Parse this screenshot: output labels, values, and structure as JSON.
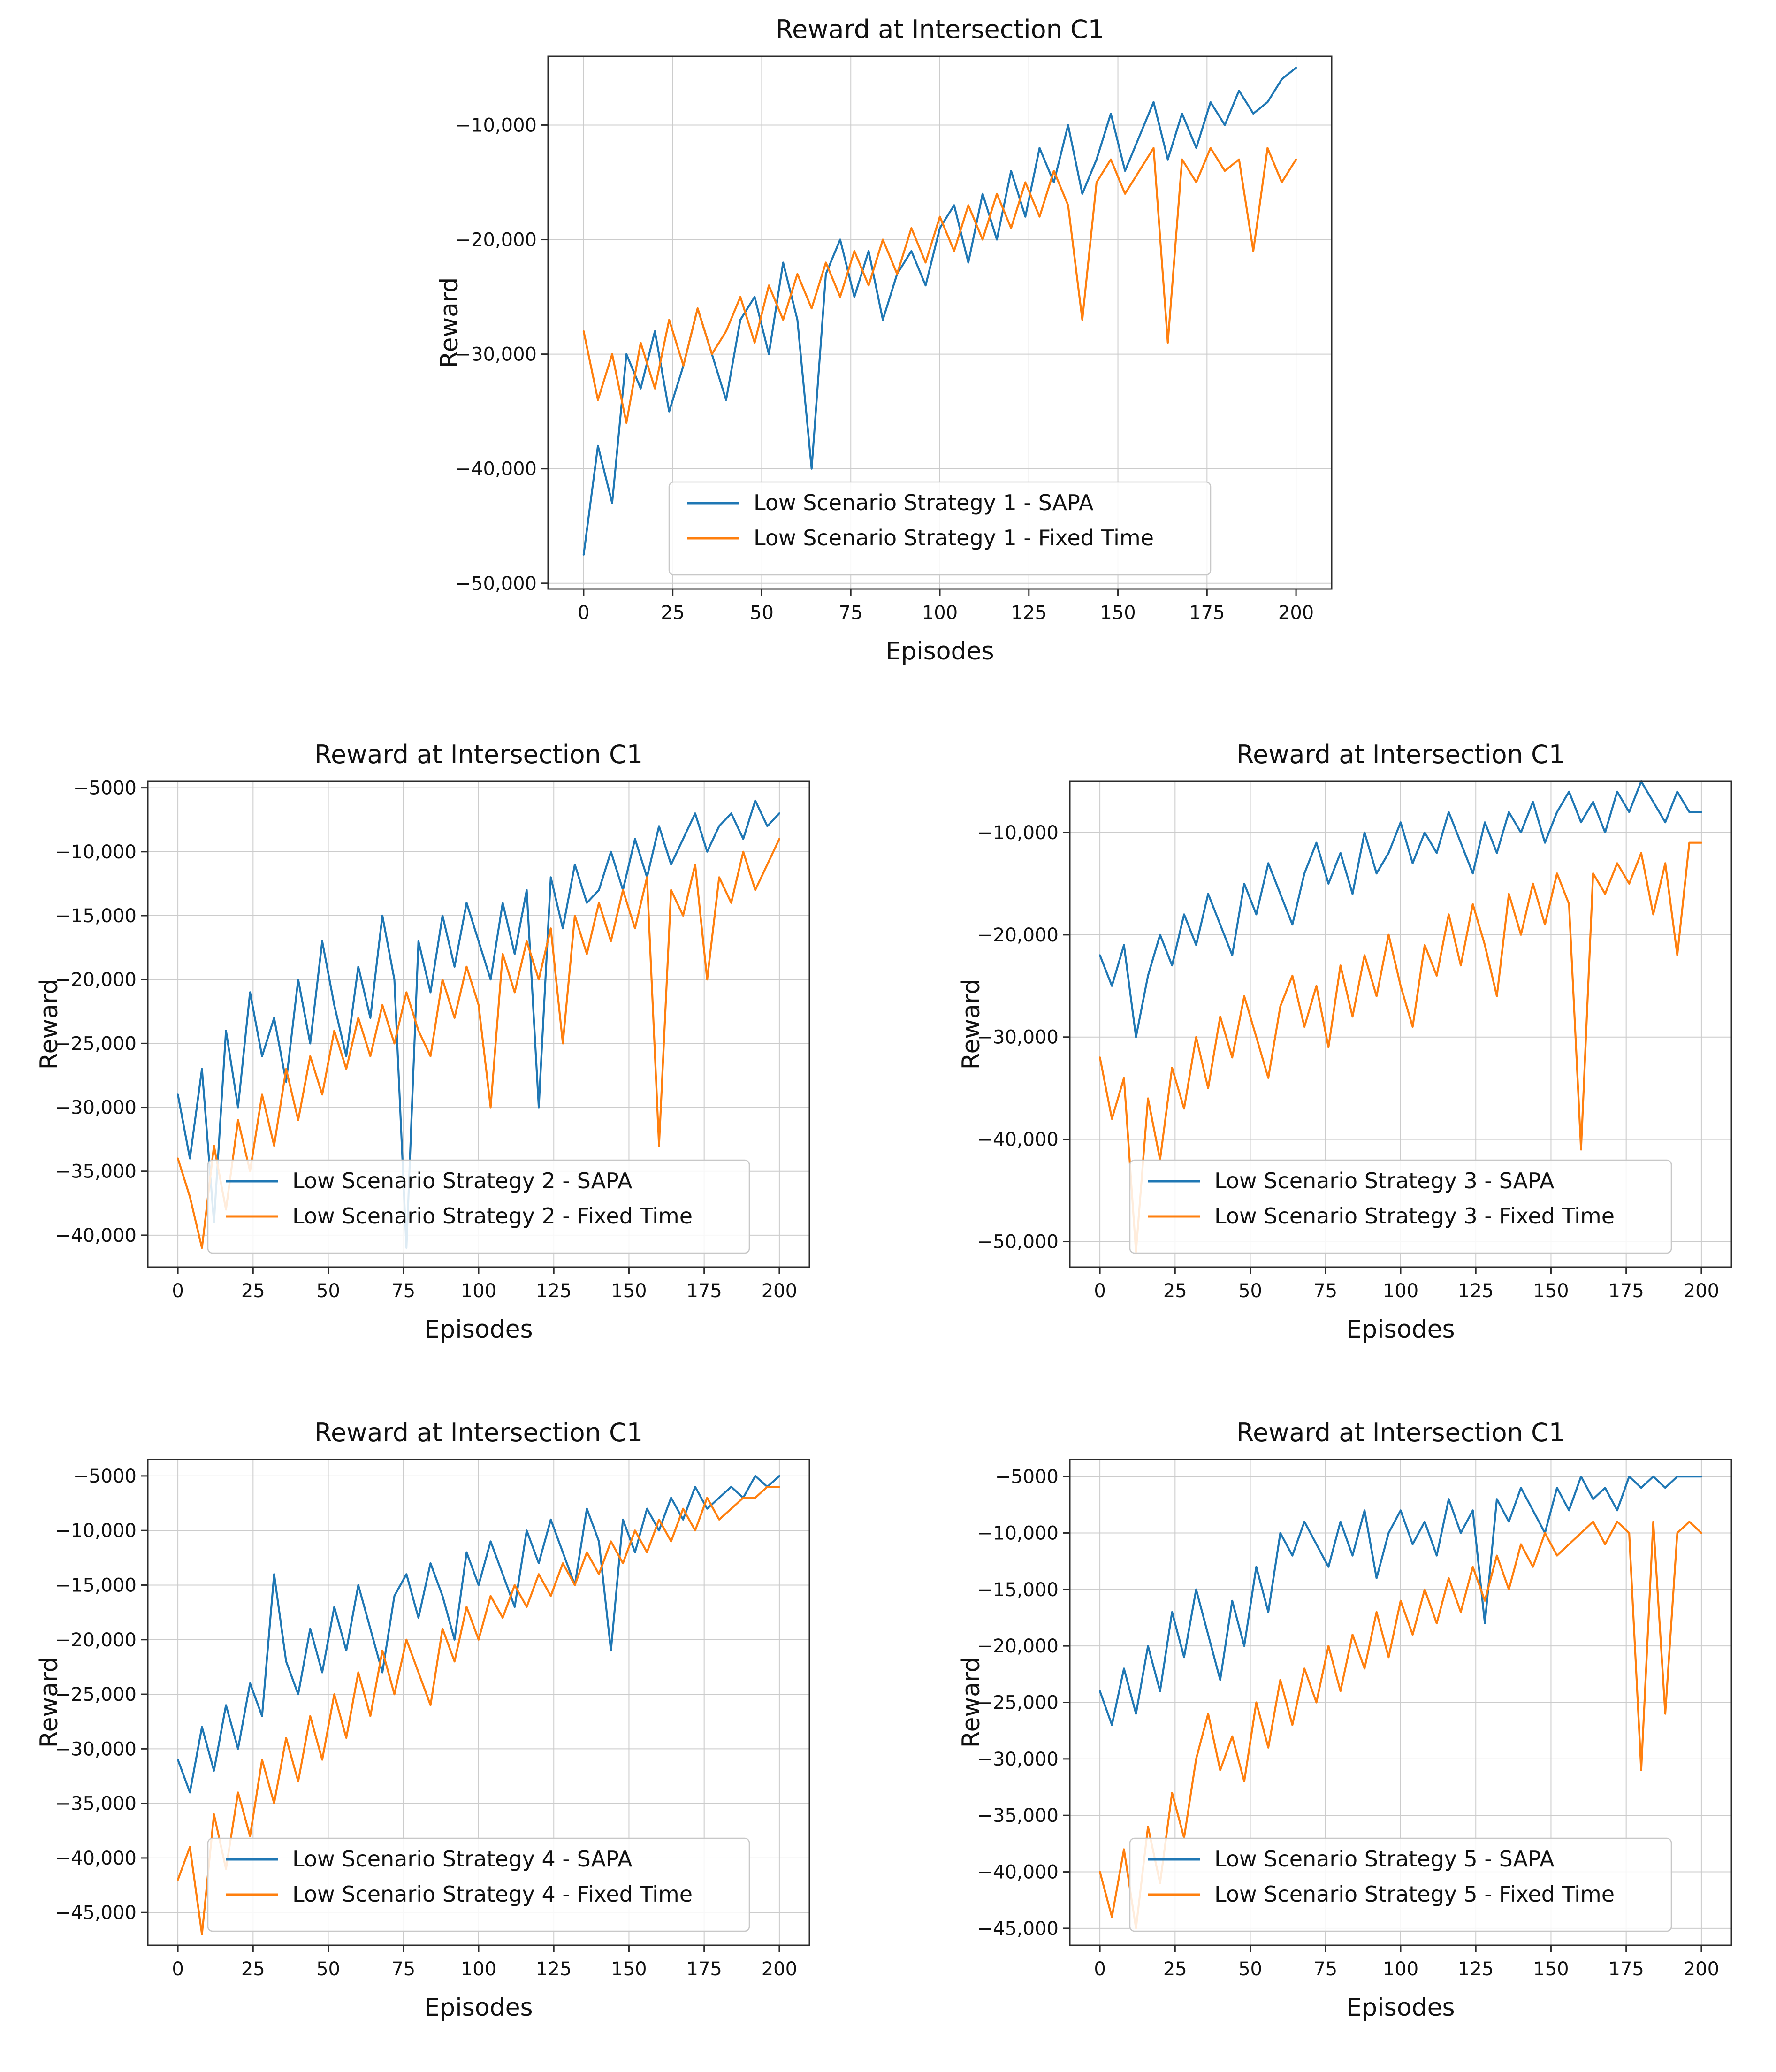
{
  "page": {
    "background": "#ffffff"
  },
  "colors": {
    "sapa": "#1f77b4",
    "fixed_time": "#ff7f0e",
    "grid": "#cccccc",
    "spine": "#2b2b2b",
    "text": "#111111",
    "legend_border": "#c8c8c8"
  },
  "xticks": {
    "values": [
      0,
      25,
      50,
      75,
      100,
      125,
      150,
      175,
      200
    ],
    "labels": [
      "0",
      "25",
      "50",
      "75",
      "100",
      "125",
      "150",
      "175",
      "200"
    ]
  },
  "episodes_x": [
    0,
    4,
    8,
    12,
    16,
    20,
    24,
    28,
    32,
    36,
    40,
    44,
    48,
    52,
    56,
    60,
    64,
    68,
    72,
    76,
    80,
    84,
    88,
    92,
    96,
    100,
    104,
    108,
    112,
    116,
    120,
    124,
    128,
    132,
    136,
    140,
    144,
    148,
    152,
    156,
    160,
    164,
    168,
    172,
    176,
    180,
    184,
    188,
    192,
    196,
    200
  ],
  "chart_data": [
    {
      "type": "line",
      "name": "chart-strategy-1",
      "title": "Reward at Intersection C1",
      "xlabel": "Episodes",
      "ylabel": "Reward",
      "xlim": [
        -10,
        210
      ],
      "ylim": [
        -50500,
        -4000
      ],
      "grid": true,
      "legend_position": "lower center",
      "yticks": {
        "values": [
          -10000,
          -20000,
          -30000,
          -40000,
          -50000
        ],
        "labels": [
          "−10,000",
          "−20,000",
          "−30,000",
          "−40,000",
          "−50,000"
        ]
      },
      "series": [
        {
          "name": "Low Scenario Strategy 1 - SAPA",
          "color_key": "sapa",
          "values": [
            -47500,
            -38000,
            -43000,
            -30000,
            -33000,
            -28000,
            -35000,
            -31000,
            -26000,
            -30000,
            -34000,
            -27000,
            -25000,
            -30000,
            -22000,
            -27000,
            -40000,
            -23000,
            -20000,
            -25000,
            -21000,
            -27000,
            -23000,
            -21000,
            -24000,
            -19000,
            -17000,
            -22000,
            -16000,
            -20000,
            -14000,
            -18000,
            -12000,
            -15000,
            -10000,
            -16000,
            -13000,
            -9000,
            -14000,
            -11000,
            -8000,
            -13000,
            -9000,
            -12000,
            -8000,
            -10000,
            -7000,
            -9000,
            -8000,
            -6000,
            -5000
          ]
        },
        {
          "name": "Low Scenario Strategy 1 - Fixed Time",
          "color_key": "fixed_time",
          "values": [
            -28000,
            -34000,
            -30000,
            -36000,
            -29000,
            -33000,
            -27000,
            -31000,
            -26000,
            -30000,
            -28000,
            -25000,
            -29000,
            -24000,
            -27000,
            -23000,
            -26000,
            -22000,
            -25000,
            -21000,
            -24000,
            -20000,
            -23000,
            -19000,
            -22000,
            -18000,
            -21000,
            -17000,
            -20000,
            -16000,
            -19000,
            -15000,
            -18000,
            -14000,
            -17000,
            -27000,
            -15000,
            -13000,
            -16000,
            -14000,
            -12000,
            -29000,
            -13000,
            -15000,
            -12000,
            -14000,
            -13000,
            -21000,
            -12000,
            -15000,
            -13000
          ]
        }
      ]
    },
    {
      "type": "line",
      "name": "chart-strategy-2",
      "title": "Reward at Intersection C1",
      "xlabel": "Episodes",
      "ylabel": "Reward",
      "xlim": [
        -10,
        210
      ],
      "ylim": [
        -42500,
        -4500
      ],
      "grid": true,
      "legend_position": "lower center",
      "yticks": {
        "values": [
          -5000,
          -10000,
          -15000,
          -20000,
          -25000,
          -30000,
          -35000,
          -40000
        ],
        "labels": [
          "−5000",
          "−10,000",
          "−15,000",
          "−20,000",
          "−25,000",
          "−30,000",
          "−35,000",
          "−40,000"
        ]
      },
      "series": [
        {
          "name": "Low Scenario Strategy 2 - SAPA",
          "color_key": "sapa",
          "values": [
            -29000,
            -34000,
            -27000,
            -39000,
            -24000,
            -30000,
            -21000,
            -26000,
            -23000,
            -28000,
            -20000,
            -25000,
            -17000,
            -22000,
            -26000,
            -19000,
            -23000,
            -15000,
            -20000,
            -41000,
            -17000,
            -21000,
            -15000,
            -19000,
            -14000,
            -17000,
            -20000,
            -14000,
            -18000,
            -13000,
            -30000,
            -12000,
            -16000,
            -11000,
            -14000,
            -13000,
            -10000,
            -13000,
            -9000,
            -12000,
            -8000,
            -11000,
            -9000,
            -7000,
            -10000,
            -8000,
            -7000,
            -9000,
            -6000,
            -8000,
            -7000
          ]
        },
        {
          "name": "Low Scenario Strategy 2 - Fixed Time",
          "color_key": "fixed_time",
          "values": [
            -34000,
            -37000,
            -41000,
            -33000,
            -38000,
            -31000,
            -35000,
            -29000,
            -33000,
            -27000,
            -31000,
            -26000,
            -29000,
            -24000,
            -27000,
            -23000,
            -26000,
            -22000,
            -25000,
            -21000,
            -24000,
            -26000,
            -20000,
            -23000,
            -19000,
            -22000,
            -30000,
            -18000,
            -21000,
            -17000,
            -20000,
            -16000,
            -25000,
            -15000,
            -18000,
            -14000,
            -17000,
            -13000,
            -16000,
            -12000,
            -33000,
            -13000,
            -15000,
            -11000,
            -20000,
            -12000,
            -14000,
            -10000,
            -13000,
            -11000,
            -9000
          ]
        }
      ]
    },
    {
      "type": "line",
      "name": "chart-strategy-3",
      "title": "Reward at Intersection C1",
      "xlabel": "Episodes",
      "ylabel": "Reward",
      "xlim": [
        -10,
        210
      ],
      "ylim": [
        -52500,
        -5000
      ],
      "grid": true,
      "legend_position": "lower center",
      "yticks": {
        "values": [
          -10000,
          -20000,
          -30000,
          -40000,
          -50000
        ],
        "labels": [
          "−10,000",
          "−20,000",
          "−30,000",
          "−40,000",
          "−50,000"
        ]
      },
      "series": [
        {
          "name": "Low Scenario Strategy 3 - SAPA",
          "color_key": "sapa",
          "values": [
            -22000,
            -25000,
            -21000,
            -30000,
            -24000,
            -20000,
            -23000,
            -18000,
            -21000,
            -16000,
            -19000,
            -22000,
            -15000,
            -18000,
            -13000,
            -16000,
            -19000,
            -14000,
            -11000,
            -15000,
            -12000,
            -16000,
            -10000,
            -14000,
            -12000,
            -9000,
            -13000,
            -10000,
            -12000,
            -8000,
            -11000,
            -14000,
            -9000,
            -12000,
            -8000,
            -10000,
            -7000,
            -11000,
            -8000,
            -6000,
            -9000,
            -7000,
            -10000,
            -6000,
            -8000,
            -5000,
            -7000,
            -9000,
            -6000,
            -8000,
            -8000
          ]
        },
        {
          "name": "Low Scenario Strategy 3 - Fixed Time",
          "color_key": "fixed_time",
          "values": [
            -32000,
            -38000,
            -34000,
            -51000,
            -36000,
            -42000,
            -33000,
            -37000,
            -30000,
            -35000,
            -28000,
            -32000,
            -26000,
            -30000,
            -34000,
            -27000,
            -24000,
            -29000,
            -25000,
            -31000,
            -23000,
            -28000,
            -22000,
            -26000,
            -20000,
            -25000,
            -29000,
            -21000,
            -24000,
            -18000,
            -23000,
            -17000,
            -21000,
            -26000,
            -16000,
            -20000,
            -15000,
            -19000,
            -14000,
            -17000,
            -41000,
            -14000,
            -16000,
            -13000,
            -15000,
            -12000,
            -18000,
            -13000,
            -22000,
            -11000,
            -11000
          ]
        }
      ]
    },
    {
      "type": "line",
      "name": "chart-strategy-4",
      "title": "Reward at Intersection C1",
      "xlabel": "Episodes",
      "ylabel": "Reward",
      "xlim": [
        -10,
        210
      ],
      "ylim": [
        -48000,
        -3500
      ],
      "grid": true,
      "legend_position": "lower center",
      "yticks": {
        "values": [
          -5000,
          -10000,
          -15000,
          -20000,
          -25000,
          -30000,
          -35000,
          -40000,
          -45000
        ],
        "labels": [
          "−5000",
          "−10,000",
          "−15,000",
          "−20,000",
          "−25,000",
          "−30,000",
          "−35,000",
          "−40,000",
          "−45,000"
        ]
      },
      "series": [
        {
          "name": "Low Scenario Strategy 4 - SAPA",
          "color_key": "sapa",
          "values": [
            -31000,
            -34000,
            -28000,
            -32000,
            -26000,
            -30000,
            -24000,
            -27000,
            -14000,
            -22000,
            -25000,
            -19000,
            -23000,
            -17000,
            -21000,
            -15000,
            -19000,
            -23000,
            -16000,
            -14000,
            -18000,
            -13000,
            -16000,
            -20000,
            -12000,
            -15000,
            -11000,
            -14000,
            -17000,
            -10000,
            -13000,
            -9000,
            -12000,
            -15000,
            -8000,
            -11000,
            -21000,
            -9000,
            -12000,
            -8000,
            -10000,
            -7000,
            -9000,
            -6000,
            -8000,
            -7000,
            -6000,
            -7000,
            -5000,
            -6000,
            -5000
          ]
        },
        {
          "name": "Low Scenario Strategy 4 - Fixed Time",
          "color_key": "fixed_time",
          "values": [
            -42000,
            -39000,
            -47000,
            -36000,
            -41000,
            -34000,
            -38000,
            -31000,
            -35000,
            -29000,
            -33000,
            -27000,
            -31000,
            -25000,
            -29000,
            -23000,
            -27000,
            -21000,
            -25000,
            -20000,
            -23000,
            -26000,
            -19000,
            -22000,
            -17000,
            -20000,
            -16000,
            -18000,
            -15000,
            -17000,
            -14000,
            -16000,
            -13000,
            -15000,
            -12000,
            -14000,
            -11000,
            -13000,
            -10000,
            -12000,
            -9000,
            -11000,
            -8000,
            -10000,
            -7000,
            -9000,
            -8000,
            -7000,
            -7000,
            -6000,
            -6000
          ]
        }
      ]
    },
    {
      "type": "line",
      "name": "chart-strategy-5",
      "title": "Reward at Intersection C1",
      "xlabel": "Episodes",
      "ylabel": "Reward",
      "xlim": [
        -10,
        210
      ],
      "ylim": [
        -46500,
        -3500
      ],
      "grid": true,
      "legend_position": "lower center",
      "yticks": {
        "values": [
          -5000,
          -10000,
          -15000,
          -20000,
          -25000,
          -30000,
          -35000,
          -40000,
          -45000
        ],
        "labels": [
          "−5000",
          "−10,000",
          "−15,000",
          "−20,000",
          "−25,000",
          "−30,000",
          "−35,000",
          "−40,000",
          "−45,000"
        ]
      },
      "series": [
        {
          "name": "Low Scenario Strategy 5 - SAPA",
          "color_key": "sapa",
          "values": [
            -24000,
            -27000,
            -22000,
            -26000,
            -20000,
            -24000,
            -17000,
            -21000,
            -15000,
            -19000,
            -23000,
            -16000,
            -20000,
            -13000,
            -17000,
            -10000,
            -12000,
            -9000,
            -11000,
            -13000,
            -9000,
            -12000,
            -8000,
            -14000,
            -10000,
            -8000,
            -11000,
            -9000,
            -12000,
            -7000,
            -10000,
            -8000,
            -18000,
            -7000,
            -9000,
            -6000,
            -8000,
            -10000,
            -6000,
            -8000,
            -5000,
            -7000,
            -6000,
            -8000,
            -5000,
            -6000,
            -5000,
            -6000,
            -5000,
            -5000,
            -5000
          ]
        },
        {
          "name": "Low Scenario Strategy 5 - Fixed Time",
          "color_key": "fixed_time",
          "values": [
            -40000,
            -44000,
            -38000,
            -45000,
            -36000,
            -41000,
            -33000,
            -37000,
            -30000,
            -26000,
            -31000,
            -28000,
            -32000,
            -25000,
            -29000,
            -23000,
            -27000,
            -22000,
            -25000,
            -20000,
            -24000,
            -19000,
            -22000,
            -17000,
            -21000,
            -16000,
            -19000,
            -15000,
            -18000,
            -14000,
            -17000,
            -13000,
            -16000,
            -12000,
            -15000,
            -11000,
            -13000,
            -10000,
            -12000,
            -11000,
            -10000,
            -9000,
            -11000,
            -9000,
            -10000,
            -31000,
            -9000,
            -26000,
            -10000,
            -9000,
            -10000
          ]
        }
      ]
    }
  ]
}
